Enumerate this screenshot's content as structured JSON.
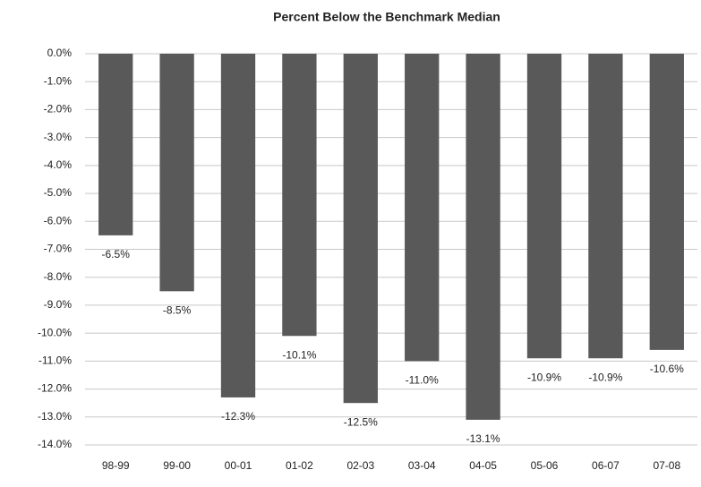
{
  "chart_data": {
    "type": "bar",
    "title": "Percent Below the Benchmark Median",
    "categories": [
      "98-99",
      "99-00",
      "00-01",
      "01-02",
      "02-03",
      "03-04",
      "04-05",
      "05-06",
      "06-07",
      "07-08"
    ],
    "values": [
      -6.5,
      -8.5,
      -12.3,
      -10.1,
      -12.5,
      -11.0,
      -13.1,
      -10.9,
      -10.9,
      -10.6
    ],
    "value_labels": [
      "-6.5%",
      "-8.5%",
      "-12.3%",
      "-10.1%",
      "-12.5%",
      "-11.0%",
      "-13.1%",
      "-10.9%",
      "-10.9%",
      "-10.6%"
    ],
    "color": "#595959",
    "ylim": [
      -14,
      0
    ],
    "yticks": [
      {
        "value": 0,
        "label": "0.0%"
      },
      {
        "value": -1,
        "label": "-1.0%"
      },
      {
        "value": -2,
        "label": "-2.0%"
      },
      {
        "value": -3,
        "label": "-3.0%"
      },
      {
        "value": -4,
        "label": "-4.0%"
      },
      {
        "value": -5,
        "label": "-5.0%"
      },
      {
        "value": -6,
        "label": "-6.0%"
      },
      {
        "value": -7,
        "label": "-7.0%"
      },
      {
        "value": -8,
        "label": "-8.0%"
      },
      {
        "value": -9,
        "label": "-9.0%"
      },
      {
        "value": -10,
        "label": "-10.0%"
      },
      {
        "value": -11,
        "label": "-11.0%"
      },
      {
        "value": -12,
        "label": "-12.0%"
      },
      {
        "value": -13,
        "label": "-13.0%"
      },
      {
        "value": -14,
        "label": "-14.0%"
      }
    ],
    "grid": true
  }
}
